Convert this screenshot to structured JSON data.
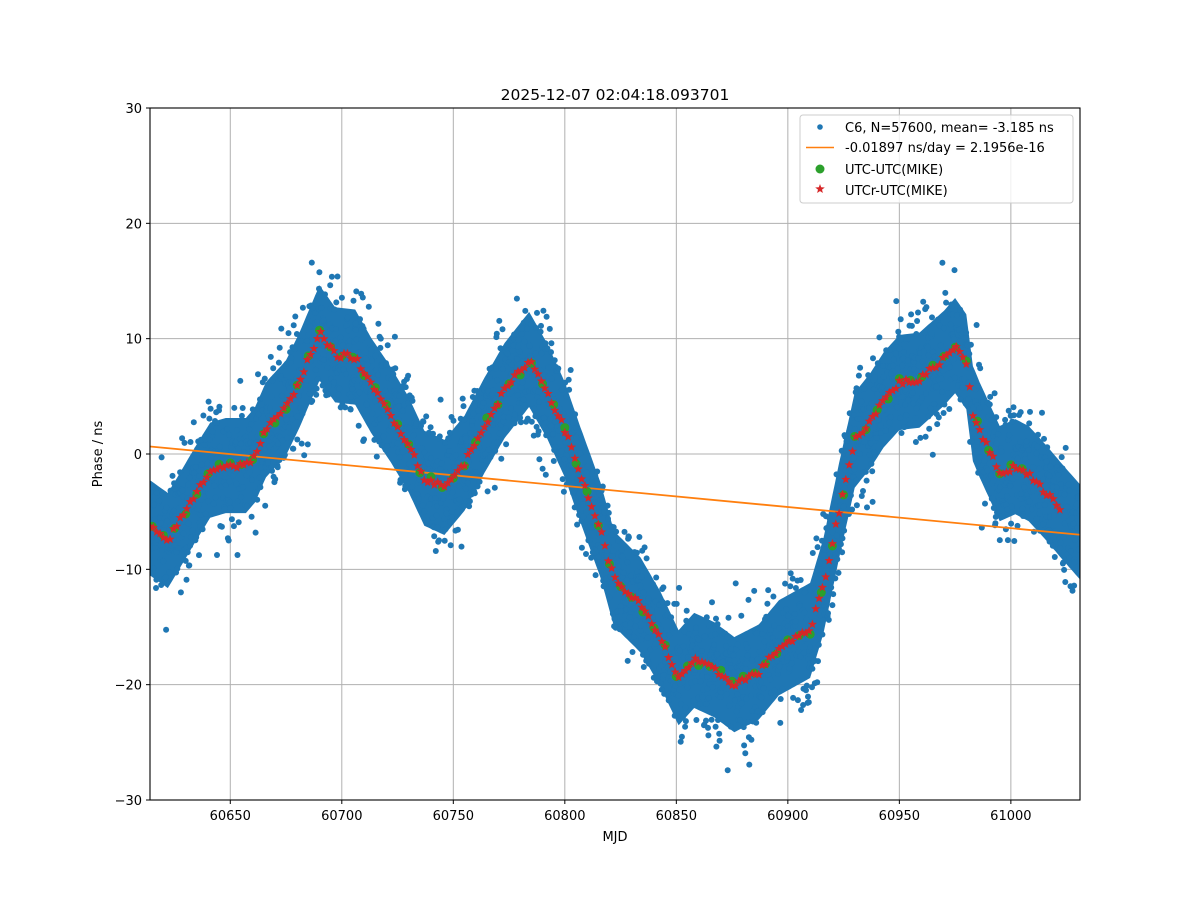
{
  "chart_data": {
    "type": "scatter",
    "title": "2025-12-07 02:04:18.093701",
    "xlabel": "MJD",
    "ylabel": "Phase / ns",
    "xlim": [
      60614,
      61031
    ],
    "ylim": [
      -30,
      30
    ],
    "xticks": [
      60650,
      60700,
      60750,
      60800,
      60850,
      60900,
      60950,
      61000
    ],
    "xtick_labels": [
      "60650",
      "60700",
      "60750",
      "60800",
      "60850",
      "60900",
      "60950",
      "61000"
    ],
    "yticks": [
      -30,
      -20,
      -10,
      0,
      10,
      20,
      30
    ],
    "ytick_labels": [
      "−30",
      "−20",
      "−10",
      "0",
      "10",
      "20",
      "30"
    ],
    "grid": true,
    "legend_position": "top-right",
    "colors": {
      "c6": "#1f77b4",
      "fit": "#ff7f0e",
      "utc": "#2ca02c",
      "utcr": "#d62728",
      "grid": "#b0b0b0"
    },
    "series": [
      {
        "name": "C6, N=57600, mean= -3.185 ns",
        "kind": "dots",
        "n": 57600,
        "mean": -3.185,
        "follows": "UTCr-UTC(MIKE)",
        "spread_ns": 5.5,
        "x_range": [
          60614,
          61030
        ]
      },
      {
        "name": "-0.01897 ns/day = 2.1956e-16",
        "kind": "line",
        "slope_ns_per_day": -0.01897,
        "x": [
          60614,
          61031
        ],
        "y": [
          0.65,
          -7.0
        ]
      },
      {
        "name": "UTC-UTC(MIKE)",
        "kind": "circles",
        "step_days": 5,
        "x_range": [
          60615,
          61005
        ]
      },
      {
        "name": "UTCr-UTC(MIKE)",
        "kind": "stars",
        "step_days": 1.5,
        "x_range": [
          60614,
          61023
        ],
        "trace_x": [
          60614,
          60622,
          60627,
          60634,
          60641,
          60648,
          60657,
          60661,
          60666,
          60675,
          60681,
          60690,
          60697,
          60706,
          60713,
          60722,
          60730,
          60737,
          60746,
          60755,
          60764,
          60773,
          60784,
          60792,
          60800,
          60807,
          60816,
          60822,
          60834,
          60843,
          60851,
          60858,
          60867,
          60876,
          60887,
          60896,
          60910,
          60916,
          60923,
          60930,
          60937,
          60943,
          60950,
          60959,
          60970,
          60975,
          60980,
          60983,
          60986,
          60995,
          61002,
          61008,
          61016,
          61023
        ],
        "trace_y": [
          -6.4,
          -7.5,
          -5.9,
          -3.6,
          -1.4,
          -1.0,
          -1.0,
          -0.1,
          2.1,
          4.0,
          6.4,
          10.5,
          8.6,
          8.4,
          6.0,
          3.4,
          0.8,
          -2.1,
          -2.9,
          -0.8,
          2.5,
          5.5,
          8.2,
          5.5,
          2.1,
          -1.8,
          -6.6,
          -10.8,
          -13.1,
          -16.1,
          -19.4,
          -17.9,
          -18.7,
          -20.0,
          -18.9,
          -16.8,
          -15.3,
          -11.4,
          -4.9,
          1.2,
          2.9,
          4.7,
          6.2,
          6.4,
          8.3,
          9.4,
          8.0,
          3.5,
          2.1,
          -1.7,
          -1.1,
          -1.7,
          -3.4,
          -5.0
        ]
      }
    ]
  }
}
